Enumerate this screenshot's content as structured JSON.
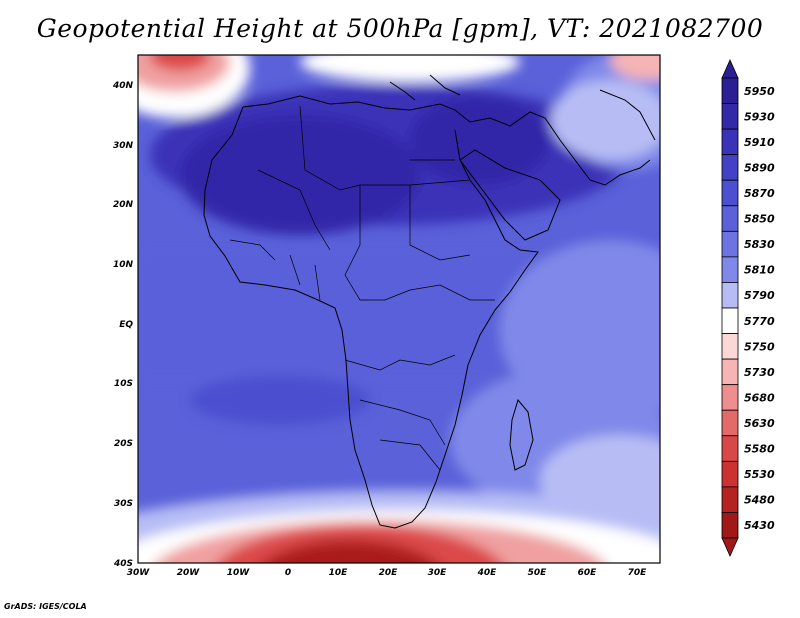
{
  "title": "Geopotential Height at 500hPa [gpm], VT: 2021082700",
  "credit": "GrADS: IGES/COLA",
  "lat_labels": [
    "40N",
    "30N",
    "20N",
    "10N",
    "EQ",
    "10S",
    "20S",
    "30S",
    "40S"
  ],
  "lon_labels": [
    "30W",
    "20W",
    "10W",
    "0",
    "10E",
    "20E",
    "30E",
    "40E",
    "50E",
    "60E",
    "70E"
  ],
  "colorbar": {
    "levels": [
      "5950",
      "5930",
      "5910",
      "5890",
      "5870",
      "5850",
      "5830",
      "5810",
      "5790",
      "5770",
      "5750",
      "5730",
      "5680",
      "5630",
      "5580",
      "5530",
      "5480",
      "5430"
    ],
    "colors": [
      "#2c1f93",
      "#3328a8",
      "#3a33b8",
      "#4341c5",
      "#4c4fcf",
      "#5a61d9",
      "#6c74e2",
      "#8089e9",
      "#b7bdf4",
      "#ffffff",
      "#fbd8d8",
      "#f6b4b4",
      "#ef8e8e",
      "#e46a6a",
      "#d94848",
      "#cc3232",
      "#b42222",
      "#a01818"
    ]
  },
  "map": {
    "extent": {
      "lon_min": -30,
      "lon_max": 75,
      "lat_min": -40,
      "lat_max": 45
    },
    "colors": {
      "deep_blue": "#3a33b8",
      "mid_blue": "#5a61d9",
      "light_blue": "#8089e9",
      "pale": "#b7bdf4",
      "white": "#ffffff",
      "light_red": "#f0a0a0",
      "red": "#dc4a4a",
      "dark_red": "#aa1c1c"
    }
  }
}
